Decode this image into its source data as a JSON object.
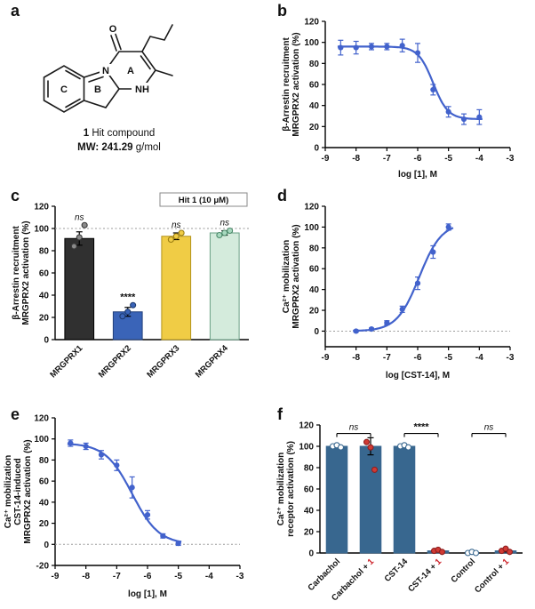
{
  "figure": {
    "panel_letters": {
      "a": "a",
      "b": "b",
      "c": "c",
      "d": "d",
      "e": "e",
      "f": "f"
    }
  },
  "panel_a": {
    "ring_labels": {
      "A": "A",
      "B": "B",
      "C": "C"
    },
    "atoms": {
      "o": "O",
      "n": "N",
      "nh": "NH"
    },
    "caption_bold": "1",
    "caption_rest": " Hit compound",
    "mw_bold": "MW: 241.29",
    "mw_rest": " g/mol"
  },
  "chart_data": [
    {
      "id": "b",
      "type": "line",
      "panel": "b",
      "xlabel": "log [1], M",
      "ylabel_lines": [
        "β-Arrestin recruitment",
        "MRGPRX2 activation (%)"
      ],
      "xlim": [
        -9,
        -3
      ],
      "ylim": [
        0,
        120
      ],
      "xticks": [
        -9,
        -8,
        -7,
        -6,
        -5,
        -4,
        -3
      ],
      "yticks": [
        0,
        20,
        40,
        60,
        80,
        100,
        120
      ],
      "x": [
        -8.5,
        -8,
        -7.5,
        -7,
        -6.5,
        -6,
        -5.5,
        -5,
        -4.5,
        -4
      ],
      "y": [
        95,
        95,
        96,
        96,
        97,
        90,
        55,
        34,
        27,
        29
      ],
      "yerr": [
        7,
        6,
        3,
        3,
        6,
        9,
        5,
        5,
        5,
        7
      ],
      "curve": {
        "top": 96,
        "bottom": 27,
        "logec50": -5.5,
        "hill": -1.8,
        "range": [
          -8.6,
          -3.9
        ]
      },
      "color": "#4262cc"
    },
    {
      "id": "c",
      "type": "bar",
      "panel": "c",
      "note": "Hit 1 (10 μM)",
      "ylabel_lines": [
        "β-Arrestin recruitment",
        "MRGPRX2 activation (%)"
      ],
      "ylim": [
        0,
        120
      ],
      "yticks": [
        0,
        20,
        40,
        60,
        80,
        100,
        120
      ],
      "dashed_y": 100,
      "categories": [
        "MRGPRX1",
        "MRGPRX2",
        "MRGPRX3",
        "MRGPRX4"
      ],
      "values": [
        91,
        25,
        93,
        96
      ],
      "errors": [
        6,
        4,
        3,
        2
      ],
      "bar_colors": [
        "#303030",
        "#3a64b8",
        "#f0cc45",
        "#d4ebdc"
      ],
      "bar_strokes": [
        "#000000",
        "#24407a",
        "#b3941c",
        "#6aa186"
      ],
      "point_styles": [
        {
          "fill": "#8a8a8a",
          "stroke": "#3a3a3a"
        },
        {
          "fill": "#3a64b8",
          "stroke": "#1d3a6e"
        },
        {
          "fill": "#f0cc45",
          "stroke": "#9a7d10"
        },
        {
          "fill": "#a8d9bf",
          "stroke": "#4c8a6a"
        }
      ],
      "points": [
        [
          84,
          92,
          103
        ],
        [
          21,
          25,
          31
        ],
        [
          90,
          93,
          96
        ],
        [
          94,
          96,
          98
        ]
      ],
      "annotations": [
        "ns",
        "****",
        "ns",
        "ns"
      ]
    },
    {
      "id": "d",
      "type": "line",
      "panel": "d",
      "xlabel": "log [CST-14], M",
      "ylabel_lines": [
        "Ca²⁺ mobilization",
        "MRGPRX2 activation (%)"
      ],
      "xlim": [
        -9,
        -3
      ],
      "ylim": [
        -15,
        120
      ],
      "xticks": [
        -9,
        -8,
        -7,
        -6,
        -5,
        -4,
        -3
      ],
      "yticks": [
        0,
        20,
        40,
        60,
        80,
        100,
        120
      ],
      "dashed_y": 0,
      "x": [
        -8,
        -7.5,
        -7,
        -6.5,
        -6,
        -5.5,
        -5
      ],
      "y": [
        0,
        2,
        8,
        21,
        46,
        76,
        100
      ],
      "yerr": [
        1,
        1,
        2,
        3,
        6,
        6,
        3
      ],
      "curve": {
        "top": 104,
        "bottom": 0,
        "logec50": -5.95,
        "hill": 1.2,
        "range": [
          -8.1,
          -4.85
        ]
      },
      "color": "#4262cc"
    },
    {
      "id": "e",
      "type": "line",
      "panel": "e",
      "xlabel": "log [1], M",
      "ylabel_lines": [
        "Ca²⁺ mobilization",
        "CST-14-induced",
        "MRGPRX2 activation (%)"
      ],
      "xlim": [
        -9,
        -3
      ],
      "ylim": [
        -20,
        120
      ],
      "xticks": [
        -9,
        -8,
        -7,
        -6,
        -5,
        -4,
        -3
      ],
      "yticks": [
        -20,
        0,
        20,
        40,
        60,
        80,
        100,
        120
      ],
      "dashed_y": 0,
      "x": [
        -8.5,
        -8,
        -7.5,
        -7,
        -6.5,
        -6,
        -5.5,
        -5
      ],
      "y": [
        96,
        93,
        85,
        75,
        54,
        28,
        8,
        1
      ],
      "yerr": [
        3,
        3,
        4,
        5,
        10,
        4,
        2,
        2
      ],
      "curve": {
        "top": 96,
        "bottom": 0,
        "logec50": -6.5,
        "hill": -1.0,
        "range": [
          -8.6,
          -4.9
        ]
      },
      "color": "#4262cc"
    },
    {
      "id": "f",
      "type": "bar",
      "panel": "f",
      "ylabel_lines": [
        "Ca²⁺ mobilization",
        "receptor activation (%)"
      ],
      "ylim": [
        0,
        120
      ],
      "yticks": [
        0,
        20,
        40,
        60,
        80,
        100,
        120
      ],
      "categories": [
        "Carbachol",
        "Carbachol + 1",
        "CST-14",
        "CST-14 + 1",
        "Control",
        "Control + 1"
      ],
      "values": [
        100,
        100,
        100,
        2,
        0,
        2
      ],
      "errors": [
        1,
        8,
        1,
        1,
        0,
        1
      ],
      "bar_color": "#38678f",
      "point_styles": [
        {
          "fill": "#ffffff",
          "stroke": "#38678f"
        },
        {
          "fill": "#d03a34",
          "stroke": "#8f1f1f"
        },
        {
          "fill": "#ffffff",
          "stroke": "#38678f"
        },
        {
          "fill": "#d03a34",
          "stroke": "#8f1f1f"
        },
        {
          "fill": "#ffffff",
          "stroke": "#38678f"
        },
        {
          "fill": "#d03a34",
          "stroke": "#8f1f1f"
        }
      ],
      "points": [
        [
          100,
          101,
          99
        ],
        [
          104,
          99,
          78
        ],
        [
          100,
          101,
          99
        ],
        [
          2,
          3,
          1
        ],
        [
          0,
          1,
          0
        ],
        [
          2,
          4,
          1
        ]
      ],
      "brackets": [
        {
          "from": 0,
          "to": 1,
          "label": "ns"
        },
        {
          "from": 2,
          "to": 3,
          "label": "****"
        },
        {
          "from": 4,
          "to": 5,
          "label": "ns"
        }
      ],
      "bracket_y": 112,
      "red_suffix": "1",
      "accent_red": "#cc2027"
    }
  ]
}
